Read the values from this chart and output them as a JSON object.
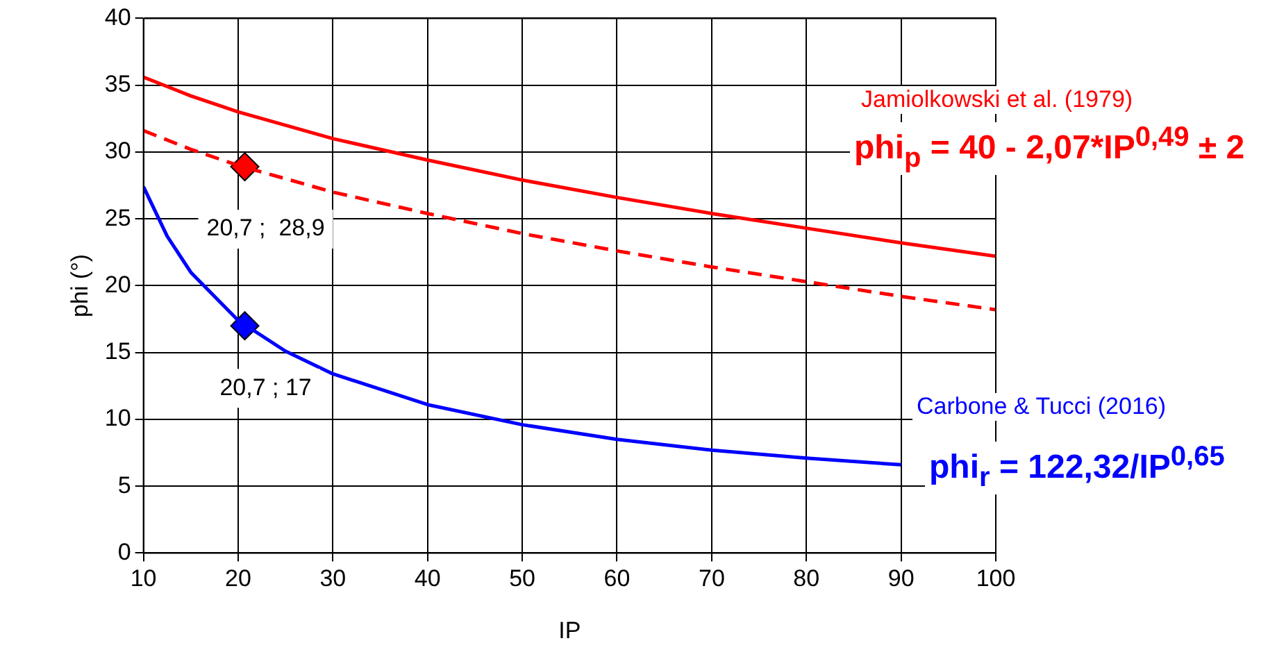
{
  "chart_data": {
    "type": "line",
    "xlabel": "IP",
    "ylabel": "phi (°)",
    "xlim": [
      10,
      100
    ],
    "xticks": [
      10,
      20,
      30,
      40,
      50,
      60,
      70,
      80,
      90,
      100
    ],
    "ylim": [
      0,
      40
    ],
    "yticks": [
      0,
      5,
      10,
      15,
      20,
      25,
      30,
      35,
      40
    ],
    "grid": true,
    "legend": false,
    "series": [
      {
        "type": "line",
        "color": "#ff0000",
        "line_style": "solid",
        "marker": "none",
        "x": [
          10,
          15,
          20,
          30,
          40,
          50,
          60,
          70,
          80,
          90,
          100
        ],
        "values": [
          35.6,
          34.2,
          33.0,
          31.0,
          29.4,
          27.9,
          26.6,
          25.4,
          24.3,
          23.2,
          22.2
        ]
      },
      {
        "type": "line",
        "color": "#ff0000",
        "line_style": "dashed",
        "marker": "none",
        "x": [
          10,
          15,
          20,
          30,
          40,
          50,
          60,
          70,
          80,
          90,
          100
        ],
        "values": [
          31.6,
          30.2,
          29.0,
          27.0,
          25.4,
          23.9,
          22.6,
          21.4,
          20.3,
          19.2,
          18.2
        ]
      },
      {
        "type": "line",
        "color": "#0000ff",
        "line_style": "solid",
        "marker": "none",
        "x": [
          10,
          12.5,
          15,
          20,
          25,
          30,
          40,
          50,
          60,
          70,
          80,
          90
        ],
        "values": [
          27.4,
          23.7,
          21.0,
          17.4,
          15.1,
          13.4,
          11.1,
          9.6,
          8.5,
          7.7,
          7.1,
          6.6
        ]
      },
      {
        "type": "scatter",
        "color": "#ff0000",
        "marker": "diamond",
        "x": [
          20.7
        ],
        "values": [
          28.9
        ],
        "value_labels": [
          "20,7 ;  28,9"
        ]
      },
      {
        "type": "scatter",
        "color": "#0000ff",
        "marker": "diamond",
        "x": [
          20.7
        ],
        "values": [
          17
        ],
        "value_labels": [
          "20,7 ; 17"
        ]
      }
    ],
    "annotations": [
      "Jamiolkowski et al. (1979)",
      "phi$_{p}$ = 40 - 2,07*IP$^{0,49}$ ±  2",
      "Carbone & Tucci (2016)",
      "phi$_{r}$ = 122,32/IP$^{0,65}$"
    ]
  }
}
